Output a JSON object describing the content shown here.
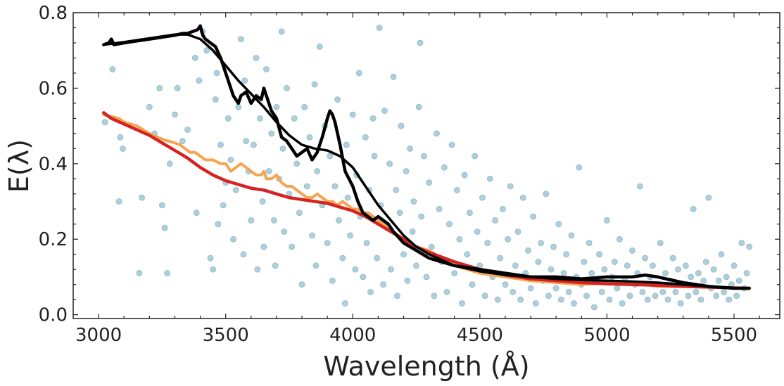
{
  "chart_data": {
    "type": "scatter",
    "title": "",
    "xlabel": "Wavelength (Å)",
    "ylabel": "E(λ)",
    "xlim": [
      2900,
      5680
    ],
    "ylim": [
      -0.01,
      0.8
    ],
    "xticks": [
      3000,
      3500,
      4000,
      4500,
      5000,
      5500
    ],
    "yticks": [
      0.0,
      0.2,
      0.4,
      0.6,
      0.8
    ],
    "xtick_labels": [
      "3000",
      "3500",
      "4000",
      "4500",
      "5000",
      "5500"
    ],
    "ytick_labels": [
      "0.0",
      "0.2",
      "0.4",
      "0.6",
      "0.8"
    ],
    "grid": false,
    "legend": "none",
    "colors": {
      "scatter": "#aecfdb",
      "scatter_edge": "#8fb6c4",
      "orange": "#f5a552",
      "red": "#d62222",
      "black": "#000000"
    },
    "scatter_points": [
      [
        3025,
        0.51
      ],
      [
        3055,
        0.65
      ],
      [
        3080,
        0.3
      ],
      [
        3085,
        0.47
      ],
      [
        3095,
        0.44
      ],
      [
        3160,
        0.11
      ],
      [
        3170,
        0.31
      ],
      [
        3200,
        0.55
      ],
      [
        3220,
        0.48
      ],
      [
        3240,
        0.6
      ],
      [
        3250,
        0.29
      ],
      [
        3260,
        0.23
      ],
      [
        3270,
        0.11
      ],
      [
        3280,
        0.4
      ],
      [
        3300,
        0.53
      ],
      [
        3310,
        0.6
      ],
      [
        3330,
        0.46
      ],
      [
        3350,
        0.49
      ],
      [
        3380,
        0.68
      ],
      [
        3385,
        0.27
      ],
      [
        3395,
        0.62
      ],
      [
        3410,
        0.75
      ],
      [
        3425,
        0.7
      ],
      [
        3440,
        0.15
      ],
      [
        3450,
        0.12
      ],
      [
        3460,
        0.57
      ],
      [
        3465,
        0.64
      ],
      [
        3470,
        0.24
      ],
      [
        3480,
        0.45
      ],
      [
        3490,
        0.29
      ],
      [
        3500,
        0.35
      ],
      [
        3510,
        0.52
      ],
      [
        3520,
        0.41
      ],
      [
        3530,
        0.2
      ],
      [
        3540,
        0.33
      ],
      [
        3550,
        0.55
      ],
      [
        3560,
        0.73
      ],
      [
        3570,
        0.16
      ],
      [
        3575,
        0.62
      ],
      [
        3580,
        0.46
      ],
      [
        3590,
        0.38
      ],
      [
        3600,
        0.25
      ],
      [
        3610,
        0.45
      ],
      [
        3620,
        0.68
      ],
      [
        3625,
        0.12
      ],
      [
        3635,
        0.52
      ],
      [
        3645,
        0.3
      ],
      [
        3650,
        0.18
      ],
      [
        3660,
        0.65
      ],
      [
        3670,
        0.38
      ],
      [
        3680,
        0.48
      ],
      [
        3690,
        0.25
      ],
      [
        3695,
        0.13
      ],
      [
        3700,
        0.55
      ],
      [
        3710,
        0.36
      ],
      [
        3720,
        0.75
      ],
      [
        3725,
        0.44
      ],
      [
        3730,
        0.22
      ],
      [
        3740,
        0.6
      ],
      [
        3750,
        0.32
      ],
      [
        3760,
        0.18
      ],
      [
        3770,
        0.52
      ],
      [
        3780,
        0.4
      ],
      [
        3790,
        0.27
      ],
      [
        3800,
        0.08
      ],
      [
        3810,
        0.55
      ],
      [
        3820,
        0.34
      ],
      [
        3830,
        0.47
      ],
      [
        3840,
        0.21
      ],
      [
        3850,
        0.61
      ],
      [
        3855,
        0.13
      ],
      [
        3860,
        0.38
      ],
      [
        3870,
        0.71
      ],
      [
        3880,
        0.29
      ],
      [
        3890,
        0.5
      ],
      [
        3900,
        0.19
      ],
      [
        3910,
        0.42
      ],
      [
        3920,
        0.09
      ],
      [
        3930,
        0.34
      ],
      [
        3940,
        0.57
      ],
      [
        3945,
        0.25
      ],
      [
        3960,
        0.15
      ],
      [
        3970,
        0.03
      ],
      [
        3975,
        0.45
      ],
      [
        3980,
        0.31
      ],
      [
        3990,
        0.21
      ],
      [
        4000,
        0.53
      ],
      [
        4010,
        0.12
      ],
      [
        4015,
        0.37
      ],
      [
        4025,
        0.64
      ],
      [
        4030,
        0.26
      ],
      [
        4040,
        0.1
      ],
      [
        4050,
        0.47
      ],
      [
        4055,
        0.19
      ],
      [
        4065,
        0.33
      ],
      [
        4070,
        0.06
      ],
      [
        4080,
        0.52
      ],
      [
        4085,
        0.42
      ],
      [
        4095,
        0.15
      ],
      [
        4105,
        0.76
      ],
      [
        4110,
        0.29
      ],
      [
        4120,
        0.08
      ],
      [
        4125,
        0.54
      ],
      [
        4135,
        0.23
      ],
      [
        4145,
        0.4
      ],
      [
        4150,
        0.12
      ],
      [
        4160,
        0.63
      ],
      [
        4170,
        0.33
      ],
      [
        4175,
        0.05
      ],
      [
        4185,
        0.27
      ],
      [
        4190,
        0.5
      ],
      [
        4200,
        0.16
      ],
      [
        4210,
        0.38
      ],
      [
        4215,
        0.09
      ],
      [
        4225,
        0.44
      ],
      [
        4235,
        0.22
      ],
      [
        4240,
        0.3
      ],
      [
        4250,
        0.13
      ],
      [
        4260,
        0.55
      ],
      [
        4265,
        0.72
      ],
      [
        4270,
        0.26
      ],
      [
        4280,
        0.42
      ],
      [
        4290,
        0.1
      ],
      [
        4300,
        0.35
      ],
      [
        4310,
        0.18
      ],
      [
        4320,
        0.05
      ],
      [
        4330,
        0.48
      ],
      [
        4340,
        0.28
      ],
      [
        4350,
        0.14
      ],
      [
        4360,
        0.39
      ],
      [
        4370,
        0.06
      ],
      [
        4380,
        0.24
      ],
      [
        4390,
        0.45
      ],
      [
        4400,
        0.11
      ],
      [
        4410,
        0.33
      ],
      [
        4420,
        0.2
      ],
      [
        4430,
        0.03
      ],
      [
        4440,
        0.37
      ],
      [
        4450,
        0.16
      ],
      [
        4460,
        0.27
      ],
      [
        4470,
        0.08
      ],
      [
        4480,
        0.42
      ],
      [
        4490,
        0.22
      ],
      [
        4500,
        0.13
      ],
      [
        4510,
        0.31
      ],
      [
        4520,
        0.05
      ],
      [
        4530,
        0.19
      ],
      [
        4540,
        0.36
      ],
      [
        4550,
        0.1
      ],
      [
        4560,
        0.25
      ],
      [
        4570,
        0.04
      ],
      [
        4580,
        0.15
      ],
      [
        4590,
        0.28
      ],
      [
        4600,
        0.08
      ],
      [
        4610,
        0.2
      ],
      [
        4620,
        0.34
      ],
      [
        4630,
        0.06
      ],
      [
        4640,
        0.13
      ],
      [
        4650,
        0.22
      ],
      [
        4660,
        0.04
      ],
      [
        4670,
        0.31
      ],
      [
        4680,
        0.11
      ],
      [
        4690,
        0.17
      ],
      [
        4700,
        0.07
      ],
      [
        4710,
        0.26
      ],
      [
        4720,
        0.03
      ],
      [
        4730,
        0.14
      ],
      [
        4740,
        0.19
      ],
      [
        4750,
        0.09
      ],
      [
        4760,
        0.32
      ],
      [
        4770,
        0.05
      ],
      [
        4780,
        0.12
      ],
      [
        4790,
        0.18
      ],
      [
        4800,
        0.07
      ],
      [
        4810,
        0.24
      ],
      [
        4820,
        0.04
      ],
      [
        4830,
        0.11
      ],
      [
        4840,
        0.16
      ],
      [
        4850,
        0.06
      ],
      [
        4860,
        0.21
      ],
      [
        4870,
        0.03
      ],
      [
        4880,
        0.1
      ],
      [
        4890,
        0.39
      ],
      [
        4900,
        0.08
      ],
      [
        4910,
        0.14
      ],
      [
        4920,
        0.05
      ],
      [
        4930,
        0.19
      ],
      [
        4940,
        0.11
      ],
      [
        4950,
        0.02
      ],
      [
        4960,
        0.09
      ],
      [
        4970,
        0.16
      ],
      [
        4980,
        0.06
      ],
      [
        4990,
        0.12
      ],
      [
        5000,
        0.25
      ],
      [
        5010,
        0.04
      ],
      [
        5020,
        0.1
      ],
      [
        5030,
        0.14
      ],
      [
        5040,
        0.07
      ],
      [
        5050,
        0.2
      ],
      [
        5060,
        0.03
      ],
      [
        5070,
        0.09
      ],
      [
        5080,
        0.13
      ],
      [
        5090,
        0.05
      ],
      [
        5100,
        0.17
      ],
      [
        5110,
        0.08
      ],
      [
        5120,
        0.11
      ],
      [
        5130,
        0.34
      ],
      [
        5140,
        0.06
      ],
      [
        5150,
        0.15
      ],
      [
        5160,
        0.04
      ],
      [
        5170,
        0.1
      ],
      [
        5180,
        0.13
      ],
      [
        5190,
        0.05
      ],
      [
        5200,
        0.08
      ],
      [
        5210,
        0.19
      ],
      [
        5220,
        0.06
      ],
      [
        5230,
        0.11
      ],
      [
        5240,
        0.04
      ],
      [
        5250,
        0.09
      ],
      [
        5260,
        0.15
      ],
      [
        5270,
        0.06
      ],
      [
        5280,
        0.12
      ],
      [
        5290,
        0.03
      ],
      [
        5300,
        0.08
      ],
      [
        5310,
        0.13
      ],
      [
        5320,
        0.05
      ],
      [
        5330,
        0.1
      ],
      [
        5340,
        0.28
      ],
      [
        5350,
        0.06
      ],
      [
        5360,
        0.11
      ],
      [
        5370,
        0.04
      ],
      [
        5380,
        0.09
      ],
      [
        5390,
        0.14
      ],
      [
        5400,
        0.31
      ],
      [
        5410,
        0.07
      ],
      [
        5420,
        0.12
      ],
      [
        5430,
        0.05
      ],
      [
        5440,
        0.09
      ],
      [
        5450,
        0.16
      ],
      [
        5460,
        0.06
      ],
      [
        5470,
        0.1
      ],
      [
        5480,
        0.04
      ],
      [
        5490,
        0.08
      ],
      [
        5500,
        0.13
      ],
      [
        5510,
        0.05
      ],
      [
        5520,
        0.09
      ],
      [
        5530,
        0.19
      ],
      [
        5540,
        0.07
      ],
      [
        5550,
        0.11
      ],
      [
        5560,
        0.18
      ]
    ],
    "series": [
      {
        "x": [
          3020,
          3050,
          3080,
          3100,
          3150,
          3200,
          3250,
          3300,
          3320,
          3340,
          3360,
          3380,
          3400,
          3420,
          3450,
          3480,
          3500,
          3520,
          3540,
          3560,
          3580,
          3600,
          3620,
          3640,
          3650,
          3660,
          3680,
          3700,
          3720,
          3740,
          3760,
          3780,
          3800,
          3820,
          3840,
          3860,
          3880,
          3900,
          3920,
          3940,
          3960,
          3980,
          4000,
          4020,
          4040,
          4060,
          4080,
          4100,
          4120,
          4140,
          4160,
          4180,
          4200,
          4250,
          4300,
          4350,
          4400,
          4450,
          4500,
          4600,
          4700,
          4800,
          4900,
          5000,
          5100,
          5150,
          5200,
          5300,
          5400,
          5500,
          5560
        ],
        "values": [
          0.53,
          0.525,
          0.52,
          0.51,
          0.5,
          0.48,
          0.465,
          0.455,
          0.45,
          0.44,
          0.43,
          0.43,
          0.42,
          0.41,
          0.41,
          0.4,
          0.4,
          0.38,
          0.39,
          0.4,
          0.39,
          0.38,
          0.37,
          0.37,
          0.38,
          0.36,
          0.36,
          0.37,
          0.35,
          0.34,
          0.34,
          0.33,
          0.32,
          0.31,
          0.31,
          0.32,
          0.31,
          0.3,
          0.3,
          0.29,
          0.3,
          0.29,
          0.28,
          0.28,
          0.27,
          0.27,
          0.26,
          0.25,
          0.24,
          0.23,
          0.22,
          0.21,
          0.2,
          0.18,
          0.17,
          0.15,
          0.13,
          0.12,
          0.11,
          0.1,
          0.09,
          0.085,
          0.08,
          0.085,
          0.085,
          0.08,
          0.075,
          0.075,
          0.075,
          0.07,
          0.07
        ]
      },
      {
        "x": [
          3020,
          3050,
          3100,
          3150,
          3200,
          3250,
          3300,
          3350,
          3400,
          3450,
          3500,
          3550,
          3600,
          3650,
          3700,
          3750,
          3800,
          3850,
          3900,
          3950,
          4000,
          4050,
          4100,
          4150,
          4200,
          4250,
          4300,
          4400,
          4500,
          4600,
          4700,
          4800,
          4900,
          5000,
          5100,
          5200,
          5300,
          5400,
          5500,
          5560
        ],
        "values": [
          0.535,
          0.52,
          0.505,
          0.49,
          0.475,
          0.455,
          0.435,
          0.415,
          0.39,
          0.37,
          0.355,
          0.345,
          0.335,
          0.33,
          0.32,
          0.31,
          0.305,
          0.3,
          0.295,
          0.285,
          0.275,
          0.26,
          0.24,
          0.22,
          0.2,
          0.18,
          0.165,
          0.14,
          0.12,
          0.105,
          0.095,
          0.09,
          0.085,
          0.082,
          0.08,
          0.078,
          0.075,
          0.073,
          0.071,
          0.07
        ]
      },
      {
        "x": [
          3020,
          3040,
          3050,
          3060,
          3100,
          3150,
          3200,
          3250,
          3300,
          3330,
          3350,
          3370,
          3390,
          3400,
          3410,
          3420,
          3440,
          3460,
          3480,
          3500,
          3520,
          3530,
          3540,
          3550,
          3560,
          3580,
          3600,
          3620,
          3640,
          3650,
          3660,
          3680,
          3700,
          3720,
          3740,
          3760,
          3780,
          3800,
          3820,
          3840,
          3860,
          3880,
          3900,
          3910,
          3920,
          3930,
          3950,
          3970,
          4000,
          4020,
          4040,
          4060,
          4080,
          4100,
          4120,
          4140,
          4160,
          4200,
          4250,
          4300,
          4400,
          4500,
          4600,
          4700,
          4800,
          4900,
          5000,
          5100,
          5150,
          5200,
          5300,
          5400,
          5500,
          5560
        ],
        "values": [
          0.715,
          0.72,
          0.73,
          0.715,
          0.72,
          0.725,
          0.73,
          0.735,
          0.74,
          0.745,
          0.745,
          0.75,
          0.755,
          0.765,
          0.74,
          0.73,
          0.72,
          0.71,
          0.68,
          0.64,
          0.6,
          0.58,
          0.57,
          0.56,
          0.58,
          0.59,
          0.56,
          0.58,
          0.57,
          0.6,
          0.58,
          0.54,
          0.52,
          0.47,
          0.46,
          0.44,
          0.42,
          0.43,
          0.44,
          0.41,
          0.43,
          0.47,
          0.52,
          0.54,
          0.53,
          0.51,
          0.45,
          0.38,
          0.34,
          0.3,
          0.27,
          0.26,
          0.25,
          0.26,
          0.25,
          0.24,
          0.22,
          0.19,
          0.17,
          0.15,
          0.13,
          0.12,
          0.11,
          0.1,
          0.1,
          0.095,
          0.1,
          0.1,
          0.105,
          0.1,
          0.085,
          0.075,
          0.07,
          0.07
        ]
      },
      {
        "x": [
          3020,
          3100,
          3200,
          3300,
          3350,
          3400,
          3450,
          3500,
          3550,
          3600,
          3650,
          3700,
          3750,
          3800,
          3850,
          3900,
          3950,
          4000,
          4050,
          4100,
          4150,
          4200,
          4250,
          4300,
          4400,
          4500,
          4600,
          4700,
          4800,
          4900,
          5000,
          5100,
          5200,
          5300,
          5400,
          5500,
          5560
        ],
        "values": [
          0.715,
          0.722,
          0.732,
          0.742,
          0.742,
          0.73,
          0.7,
          0.66,
          0.62,
          0.585,
          0.55,
          0.51,
          0.475,
          0.45,
          0.44,
          0.435,
          0.42,
          0.39,
          0.34,
          0.29,
          0.25,
          0.21,
          0.18,
          0.16,
          0.13,
          0.115,
          0.105,
          0.1,
          0.095,
          0.092,
          0.09,
          0.088,
          0.085,
          0.08,
          0.075,
          0.071,
          0.07
        ]
      }
    ]
  }
}
